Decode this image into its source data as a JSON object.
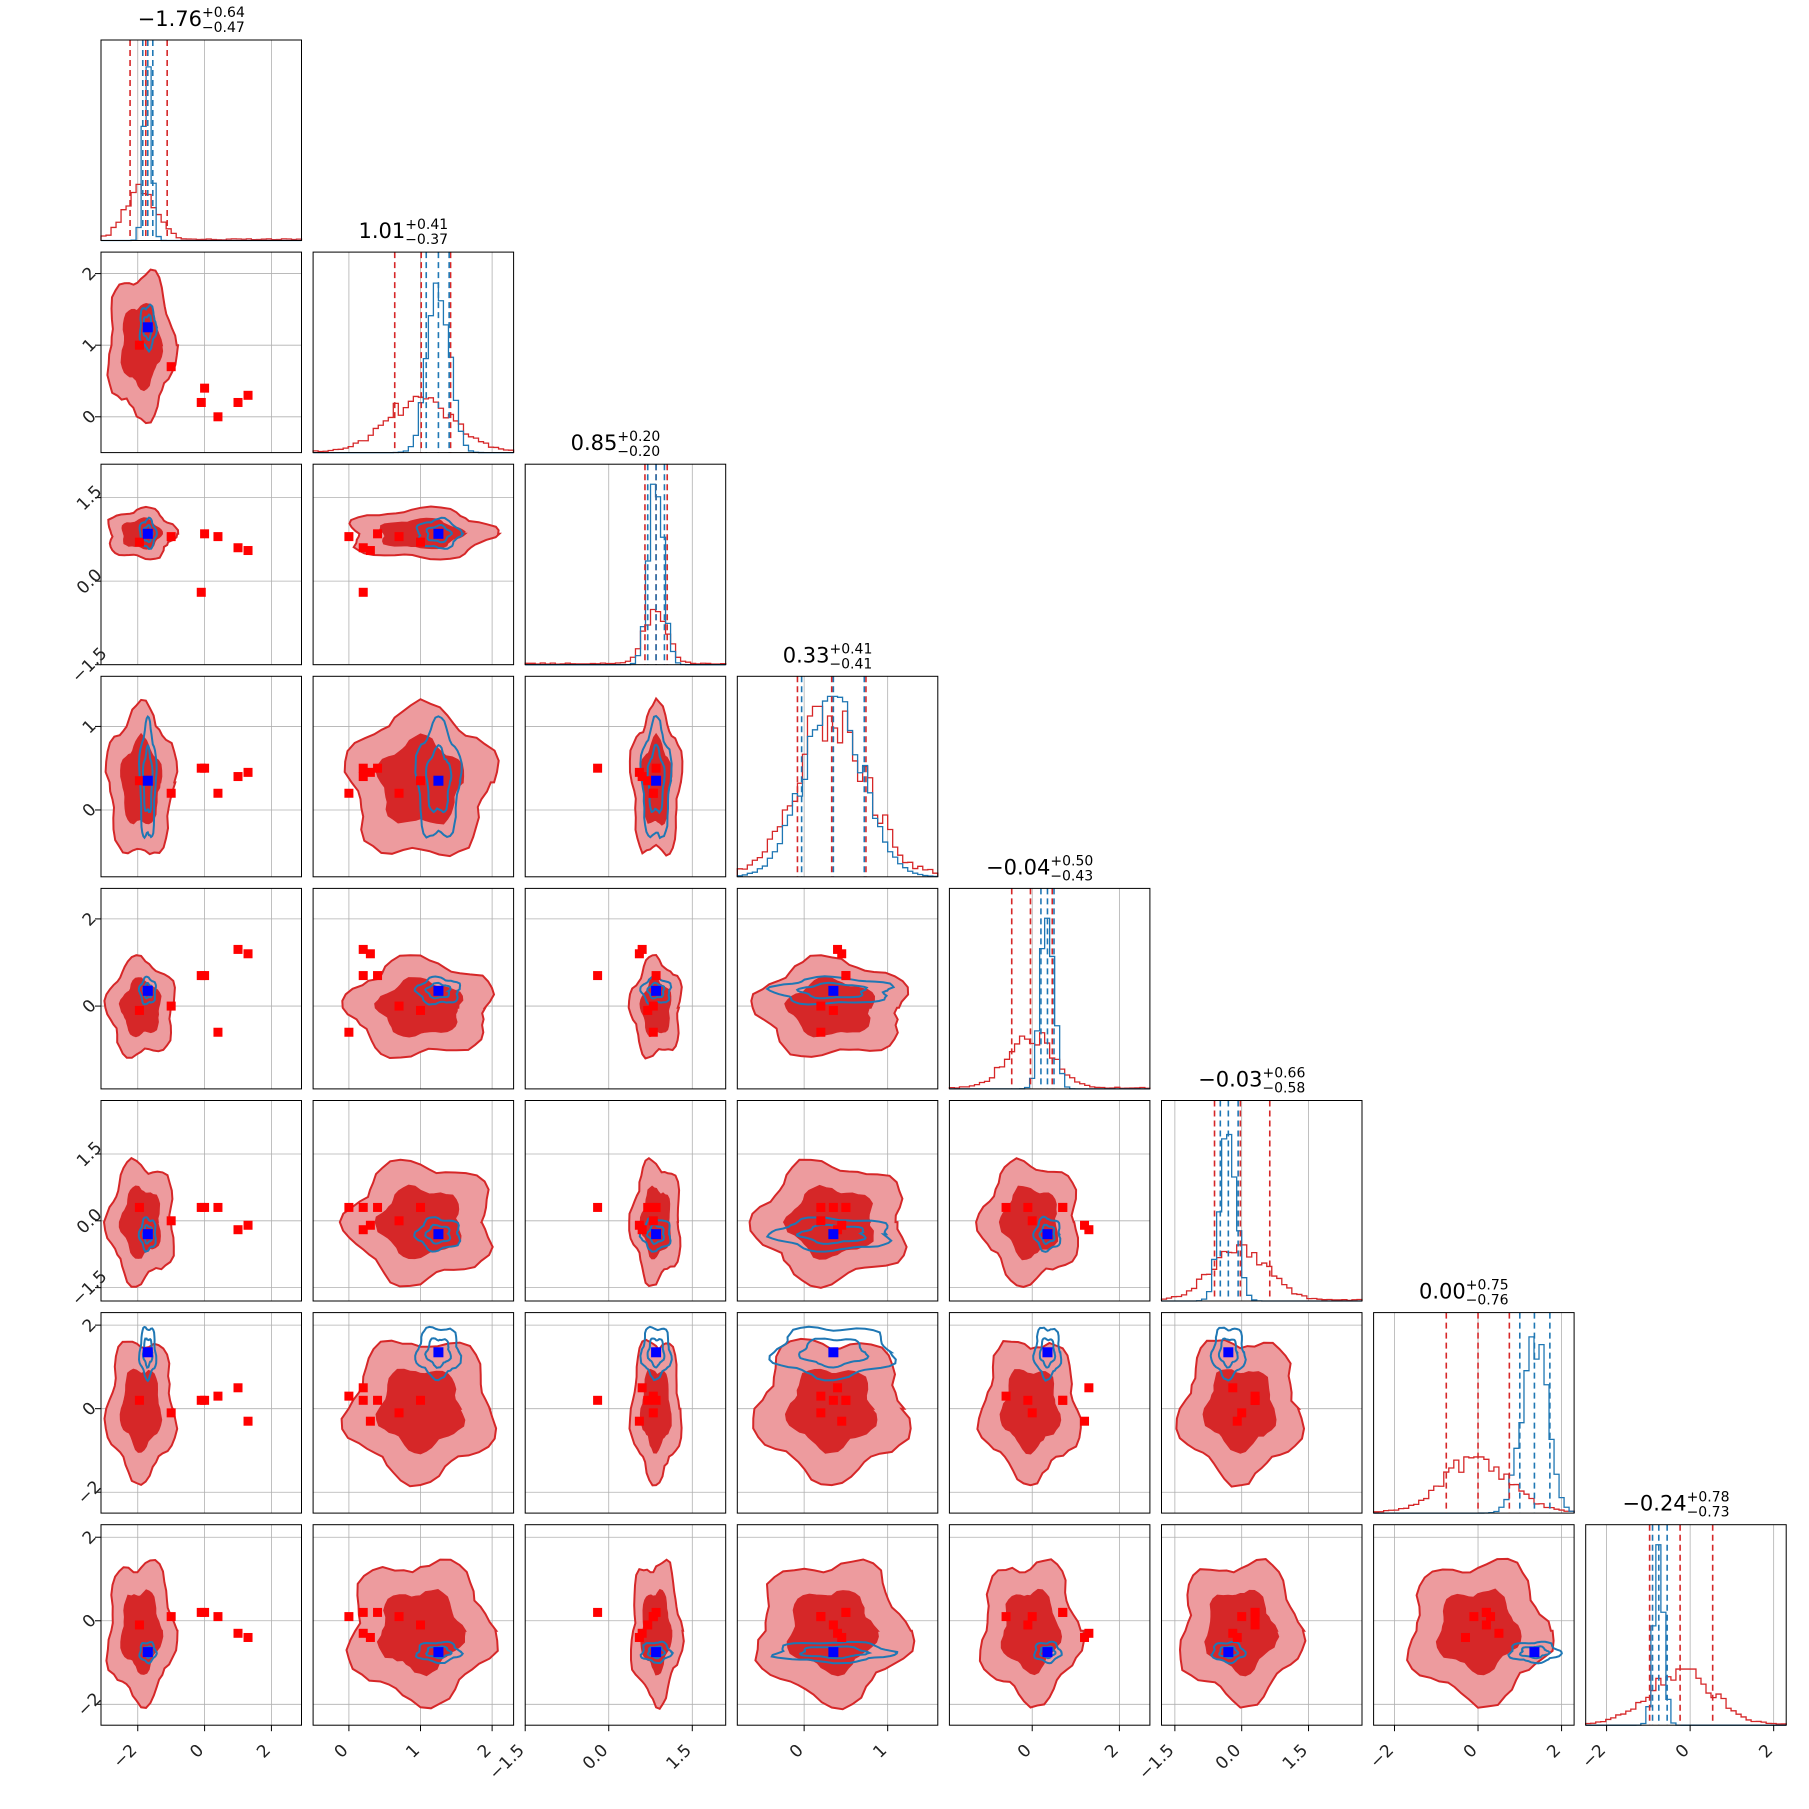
{
  "chart_data": {
    "type": "corner",
    "n_params": 8,
    "colors": {
      "wide_posterior": "#d62728",
      "wide_posterior_light": "#ed9b9e",
      "narrow_posterior": "#1f77b4",
      "truth_marker": "#0000ff",
      "point_markers": "#ff0000"
    },
    "params": [
      {
        "index": 0,
        "summary": {
          "median": "−1.76",
          "plus": "+0.64",
          "minus": "−0.47"
        },
        "range": [
          -3.1,
          2.9
        ],
        "ticks": [
          -2,
          0,
          2
        ],
        "tick_labels": [
          "−2",
          "0",
          "2"
        ],
        "wide_center": -1.9,
        "wide_sd": 0.45,
        "narrow_center": -1.7,
        "narrow_sd": 0.12,
        "wide_lines": [
          -2.23,
          -1.76,
          -1.12
        ],
        "narrow_lines": [
          -1.85,
          -1.7,
          -1.55
        ]
      },
      {
        "index": 1,
        "summary": {
          "median": "1.01",
          "plus": "+0.41",
          "minus": "−0.37"
        },
        "range": [
          -0.5,
          2.3
        ],
        "ticks": [
          0,
          1,
          2
        ],
        "tick_labels": [
          "0",
          "1",
          "2"
        ],
        "wide_center": 1.0,
        "wide_sd": 0.45,
        "narrow_center": 1.25,
        "narrow_sd": 0.15,
        "wide_lines": [
          0.64,
          1.01,
          1.42
        ],
        "narrow_lines": [
          1.08,
          1.25,
          1.4
        ]
      },
      {
        "index": 2,
        "summary": {
          "median": "0.85",
          "plus": "+0.20",
          "minus": "−0.20"
        },
        "range": [
          -1.5,
          2.1
        ],
        "ticks": [
          -1.5,
          0.0,
          1.5
        ],
        "tick_labels": [
          "−1.5",
          "0.0",
          "1.5"
        ],
        "wide_center": 0.85,
        "wide_sd": 0.2,
        "narrow_center": 0.85,
        "narrow_sd": 0.13,
        "wide_lines": [
          0.65,
          0.85,
          1.05
        ],
        "narrow_lines": [
          0.7,
          0.85,
          1.0
        ]
      },
      {
        "index": 3,
        "summary": {
          "median": "0.33",
          "plus": "+0.41",
          "minus": "−0.41"
        },
        "range": [
          -0.8,
          1.6
        ],
        "ticks": [
          0,
          1
        ],
        "tick_labels": [
          "0",
          "1"
        ],
        "wide_center": 0.33,
        "wide_sd": 0.4,
        "narrow_center": 0.35,
        "narrow_sd": 0.35,
        "wide_lines": [
          -0.08,
          0.33,
          0.74
        ],
        "narrow_lines": [
          -0.03,
          0.35,
          0.72
        ]
      },
      {
        "index": 4,
        "summary": {
          "median": "−0.04",
          "plus": "+0.50",
          "minus": "−0.43"
        },
        "range": [
          -1.9,
          2.7
        ],
        "ticks": [
          0,
          2
        ],
        "tick_labels": [
          "0",
          "2"
        ],
        "wide_center": -0.04,
        "wide_sd": 0.5,
        "narrow_center": 0.35,
        "narrow_sd": 0.15,
        "wide_lines": [
          -0.47,
          -0.04,
          0.46
        ],
        "narrow_lines": [
          0.2,
          0.35,
          0.5
        ]
      },
      {
        "index": 5,
        "summary": {
          "median": "−0.03",
          "plus": "+0.66",
          "minus": "−0.58"
        },
        "range": [
          -1.8,
          2.7
        ],
        "ticks": [
          -1.5,
          0.0,
          1.5
        ],
        "tick_labels": [
          "−1.5",
          "0.0",
          "1.5"
        ],
        "wide_center": -0.03,
        "wide_sd": 0.6,
        "narrow_center": -0.3,
        "narrow_sd": 0.18,
        "wide_lines": [
          -0.61,
          -0.03,
          0.63
        ],
        "narrow_lines": [
          -0.48,
          -0.3,
          -0.08
        ]
      },
      {
        "index": 6,
        "summary": {
          "median": "0.00",
          "plus": "+0.75",
          "minus": "−0.76"
        },
        "range": [
          -2.5,
          2.3
        ],
        "ticks": [
          -2,
          0,
          2
        ],
        "tick_labels": [
          "−2",
          "0",
          "2"
        ],
        "wide_center": 0.0,
        "wide_sd": 0.75,
        "narrow_center": 1.35,
        "narrow_sd": 0.3,
        "wide_lines": [
          -0.76,
          0.0,
          0.75
        ],
        "narrow_lines": [
          1.0,
          1.35,
          1.72
        ]
      },
      {
        "index": 7,
        "summary": {
          "median": "−0.24",
          "plus": "+0.78",
          "minus": "−0.73"
        },
        "range": [
          -2.5,
          2.3
        ],
        "ticks": [
          -2,
          0,
          2
        ],
        "tick_labels": [
          "−2",
          "0",
          "2"
        ],
        "wide_center": -0.24,
        "wide_sd": 0.75,
        "narrow_center": -0.75,
        "narrow_sd": 0.12,
        "wide_lines": [
          -0.97,
          -0.24,
          0.54
        ],
        "narrow_lines": [
          -0.9,
          -0.75,
          -0.55
        ]
      }
    ],
    "truth": [
      -1.7,
      1.25,
      0.85,
      0.35,
      0.35,
      -0.3,
      1.35,
      -0.75
    ],
    "point_markers": [
      [
        -1.95,
        1.0,
        0.7,
        0.35,
        -0.1,
        0.3,
        0.2,
        -0.1
      ],
      [
        -1.0,
        0.7,
        0.8,
        0.2,
        0.0,
        0.0,
        -0.1,
        0.1
      ],
      [
        0.0,
        0.4,
        0.85,
        0.5,
        0.7,
        0.3,
        0.2,
        0.2
      ],
      [
        0.4,
        0.0,
        0.8,
        0.2,
        -0.6,
        0.3,
        0.3,
        0.1
      ],
      [
        1.0,
        0.2,
        0.6,
        0.4,
        1.3,
        -0.2,
        0.5,
        -0.3
      ],
      [
        1.3,
        0.3,
        0.55,
        0.45,
        1.2,
        -0.1,
        -0.3,
        -0.4
      ],
      [
        -0.1,
        0.2,
        -0.2,
        0.5,
        0.7,
        0.3,
        0.2,
        0.2
      ]
    ]
  }
}
